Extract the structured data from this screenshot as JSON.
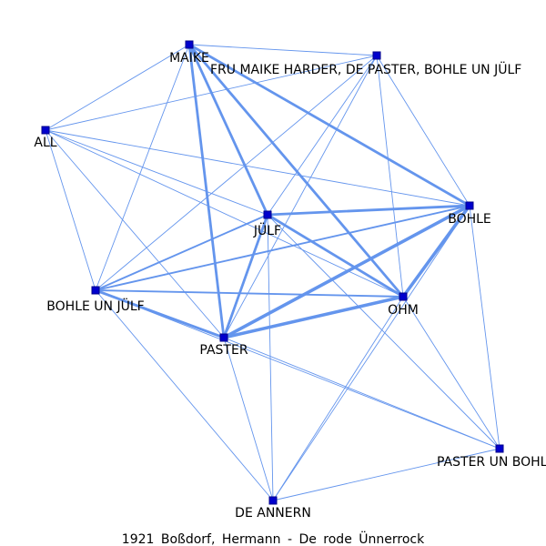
{
  "caption": "1921  Boßdorf,  Hermann  -  De  rode  Ünnerrock",
  "colors": {
    "edge": "#6495ed",
    "node": "#0000cd",
    "node_stroke": "#00008b",
    "label": "#000000"
  },
  "nodes": [
    {
      "id": "maike",
      "label": "MAIKE"
    },
    {
      "id": "fru",
      "label": "FRU MAIKE HARDER, DE PASTER, BOHLE UN JÜLF"
    },
    {
      "id": "all",
      "label": "ALL"
    },
    {
      "id": "juelf",
      "label": "JÜLF"
    },
    {
      "id": "bohle",
      "label": "BOHLE"
    },
    {
      "id": "bohle_juelf",
      "label": "BOHLE UN JÜLF"
    },
    {
      "id": "ohm",
      "label": "OHM"
    },
    {
      "id": "paster",
      "label": "PASTER"
    },
    {
      "id": "paster_bohle",
      "label": "PASTER UN BOHLE"
    },
    {
      "id": "annern",
      "label": "DE ANNERN"
    }
  ],
  "edges": [
    {
      "from": "maike",
      "to": "fru",
      "weight": 1
    },
    {
      "from": "maike",
      "to": "all",
      "weight": 1
    },
    {
      "from": "maike",
      "to": "bohle_juelf",
      "weight": 1
    },
    {
      "from": "maike",
      "to": "juelf",
      "weight": 3
    },
    {
      "from": "maike",
      "to": "paster",
      "weight": 3
    },
    {
      "from": "maike",
      "to": "ohm",
      "weight": 3
    },
    {
      "from": "maike",
      "to": "bohle",
      "weight": 3
    },
    {
      "from": "fru",
      "to": "all",
      "weight": 1
    },
    {
      "from": "fru",
      "to": "juelf",
      "weight": 1
    },
    {
      "from": "fru",
      "to": "bohle_juelf",
      "weight": 1
    },
    {
      "from": "fru",
      "to": "paster",
      "weight": 1
    },
    {
      "from": "fru",
      "to": "ohm",
      "weight": 1
    },
    {
      "from": "fru",
      "to": "bohle",
      "weight": 1
    },
    {
      "from": "all",
      "to": "juelf",
      "weight": 1
    },
    {
      "from": "all",
      "to": "bohle",
      "weight": 1
    },
    {
      "from": "all",
      "to": "ohm",
      "weight": 1
    },
    {
      "from": "all",
      "to": "bohle_juelf",
      "weight": 1
    },
    {
      "from": "all",
      "to": "paster",
      "weight": 1
    },
    {
      "from": "juelf",
      "to": "bohle",
      "weight": 3
    },
    {
      "from": "juelf",
      "to": "ohm",
      "weight": 3
    },
    {
      "from": "juelf",
      "to": "paster",
      "weight": 3
    },
    {
      "from": "juelf",
      "to": "bohle_juelf",
      "weight": 2
    },
    {
      "from": "juelf",
      "to": "annern",
      "weight": 1
    },
    {
      "from": "juelf",
      "to": "paster_bohle",
      "weight": 1
    },
    {
      "from": "bohle",
      "to": "ohm",
      "weight": 4
    },
    {
      "from": "bohle",
      "to": "paster",
      "weight": 4
    },
    {
      "from": "bohle",
      "to": "bohle_juelf",
      "weight": 2
    },
    {
      "from": "bohle",
      "to": "paster_bohle",
      "weight": 1
    },
    {
      "from": "bohle",
      "to": "annern",
      "weight": 1
    },
    {
      "from": "bohle_juelf",
      "to": "ohm",
      "weight": 2
    },
    {
      "from": "bohle_juelf",
      "to": "paster",
      "weight": 3
    },
    {
      "from": "bohle_juelf",
      "to": "annern",
      "weight": 1
    },
    {
      "from": "bohle_juelf",
      "to": "paster_bohle",
      "weight": 1
    },
    {
      "from": "paster",
      "to": "ohm",
      "weight": 4
    },
    {
      "from": "paster",
      "to": "annern",
      "weight": 1
    },
    {
      "from": "paster",
      "to": "paster_bohle",
      "weight": 1
    },
    {
      "from": "ohm",
      "to": "annern",
      "weight": 1
    },
    {
      "from": "ohm",
      "to": "paster_bohle",
      "weight": 1
    },
    {
      "from": "annern",
      "to": "paster_bohle",
      "weight": 1
    }
  ]
}
